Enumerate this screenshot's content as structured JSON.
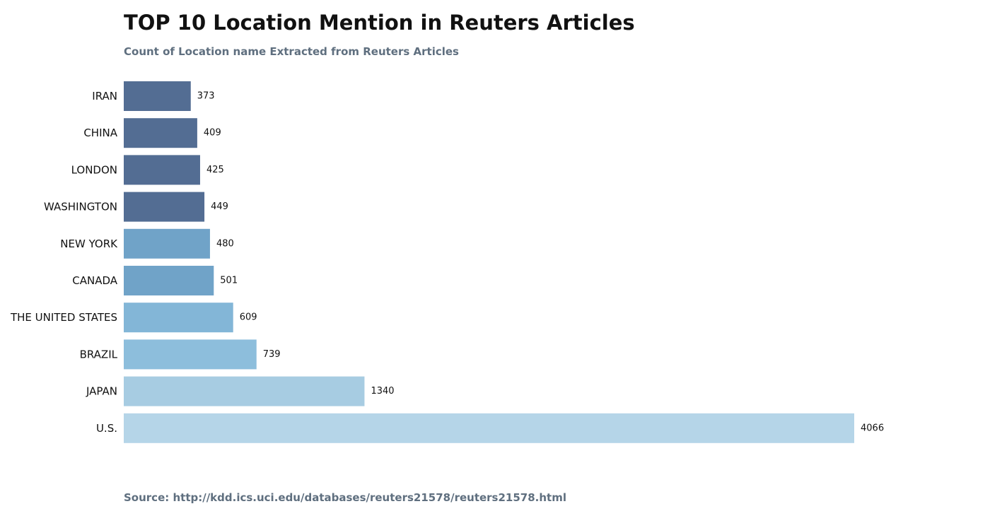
{
  "title": "TOP 10 Location Mention in Reuters Articles",
  "subtitle": "Count of Location name Extracted from Reuters Articles",
  "source": "Source: http://kdd.ics.uci.edu/databases/reuters21578/reuters21578.html",
  "chart_data": {
    "type": "bar",
    "orientation": "horizontal",
    "title": "TOP 10 Location Mention in Reuters Articles",
    "subtitle": "Count of Location name Extracted from Reuters Articles",
    "xlabel": "",
    "ylabel": "",
    "grid": false,
    "axes_visible": false,
    "categories": [
      "IRAN",
      "CHINA",
      "LONDON",
      "WASHINGTON",
      "NEW YORK",
      "CANADA",
      "THE UNITED STATES",
      "BRAZIL",
      "JAPAN",
      "U.S."
    ],
    "values": [
      373,
      409,
      425,
      449,
      480,
      501,
      609,
      739,
      1340,
      4066
    ],
    "data_labels": [
      "373",
      "409",
      "425",
      "449",
      "480",
      "501",
      "609",
      "739",
      "1340",
      "4066"
    ],
    "colors": [
      "#536d93",
      "#536d93",
      "#536d93",
      "#536d93",
      "#70a3c8",
      "#70a3c8",
      "#83b6d7",
      "#8dbedc",
      "#a7cce2",
      "#b5d5e8"
    ],
    "xlim": [
      0,
      4066
    ]
  }
}
